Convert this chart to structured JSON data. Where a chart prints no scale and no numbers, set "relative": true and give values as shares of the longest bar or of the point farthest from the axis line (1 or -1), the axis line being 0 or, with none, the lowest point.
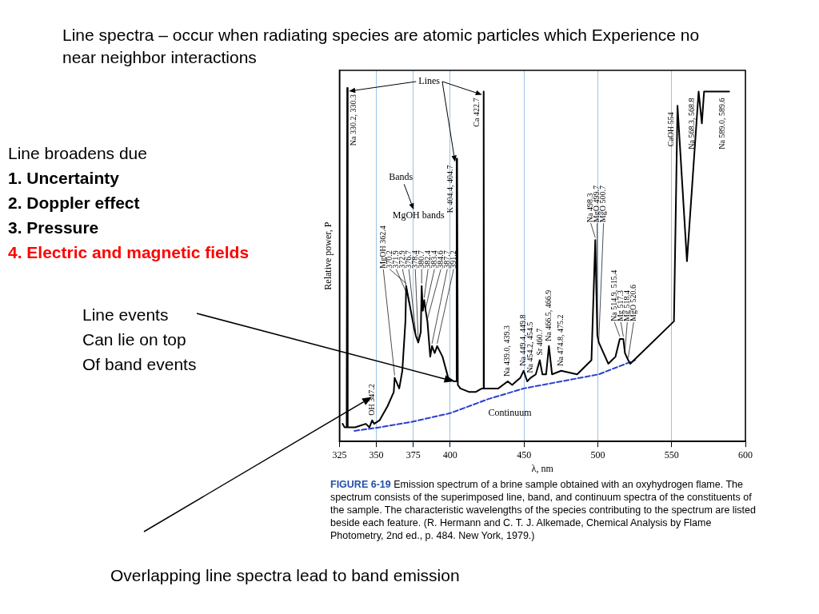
{
  "chart_data": {
    "type": "line",
    "title": "Line spectra – occur when radiating species are atomic particles which Experience no near neighbor interactions",
    "xlabel": "λ, nm",
    "ylabel": "Relative power, P",
    "relative": true,
    "xlim": [
      325,
      600
    ],
    "xticks": [
      325,
      350,
      375,
      400,
      450,
      500,
      550,
      600
    ],
    "grid": "x",
    "legend": false,
    "marker": "none",
    "series": [
      {
        "color": "#000000",
        "x": [
          327.1,
          328.5,
          329.9,
          330.2,
          330.3,
          330.6,
          335.6,
          342.9,
          345.3,
          347.2,
          348.5,
          352.2,
          357.6,
          361.8,
          362.4,
          365.5,
          367.6,
          369.7,
          370.2,
          371.9,
          372.9,
          375.6,
          376.7,
          378.4,
          380.1,
          380.7,
          381.5,
          382.4,
          383.4,
          384.6,
          386.5,
          387.7,
          389.5,
          391.2,
          394.8,
          398.7,
          402.6,
          404.2,
          404.4,
          404.7,
          405.2,
          406.9,
          413,
          417.2,
          421.5,
          422.6,
          422.7,
          422.9,
          432.6,
          439.0,
          442,
          444.7,
          447.5,
          449.8,
          452.2,
          454.5,
          458,
          460.7,
          462.5,
          465,
          466.9,
          469,
          475.2,
          486,
          495.7,
          498.3,
          499.7,
          500.7,
          507.1,
          512,
          514.9,
          517.3,
          518.4,
          520.6,
          522,
          551.6,
          554,
          560.4,
          568.3,
          570.5,
          572,
          589.0
        ],
        "values": [
          0.05,
          0.04,
          0.04,
          0.04,
          1.0,
          0.04,
          0.04,
          0.05,
          0.04,
          0.06,
          0.05,
          0.06,
          0.1,
          0.14,
          0.18,
          0.15,
          0.2,
          0.34,
          0.44,
          0.4,
          0.38,
          0.32,
          0.3,
          0.28,
          0.31,
          0.44,
          0.37,
          0.4,
          0.37,
          0.34,
          0.24,
          0.27,
          0.25,
          0.27,
          0.24,
          0.18,
          0.17,
          0.17,
          0.8,
          0.8,
          0.16,
          0.15,
          0.14,
          0.14,
          0.15,
          0.15,
          0.99,
          0.15,
          0.15,
          0.17,
          0.16,
          0.17,
          0.18,
          0.2,
          0.17,
          0.18,
          0.19,
          0.23,
          0.19,
          0.19,
          0.27,
          0.19,
          0.2,
          0.19,
          0.23,
          0.57,
          0.3,
          0.28,
          0.22,
          0.24,
          0.29,
          0.29,
          0.25,
          0.23,
          0.22,
          0.34,
          0.95,
          0.51,
          0.99,
          0.9,
          0.99,
          0.99
        ]
      },
      {
        "name": "Continuum",
        "color": "#2b3fcf",
        "line_style": "dashed",
        "x": [
          335.2,
          352.3,
          373.4,
          400,
          425.8,
          449.8,
          500.7,
          525.2
        ],
        "values": [
          0.03,
          0.04,
          0.055,
          0.08,
          0.12,
          0.15,
          0.19,
          0.23
        ]
      }
    ],
    "annotations": [
      "Line broadens due\n1.  Uncertainty\n2.  Doppler effect\n3.  Pressure\n4.  Electric and magnetic fields",
      "Line events\nCan lie on top\nOf band events",
      "Overlapping line spectra lead to band emission",
      "FIGURE 6-19 Emission spectrum of a brine sample obtained with an oxyhydrogen flame. The spectrum consists of the superimposed line, band, and continuum spectra of the constituents of the sample. The characteristic wavelengths of the species contributing to the spectrum are listed beside each feature. (R. Hermann and C. T. J. Alkemade, Chemical Analysis by Flame Photometry, 2nd ed., p. 484. New York, 1979.)",
      "Lines",
      "Bands",
      "MgOH bands",
      {
        "text": "Na 330.2, 330.3",
        "x": 330.3,
        "y": 1.0
      },
      {
        "text": "OH 347.2",
        "x": 347.2,
        "y": 0.06
      },
      {
        "text": "MgOH 362.4",
        "x": 362.4,
        "y": 0.18
      },
      {
        "text": "370.2",
        "x": 370.2,
        "y": 0.44
      },
      {
        "text": "371.9",
        "x": 371.9,
        "y": 0.4
      },
      {
        "text": "372.9",
        "x": 372.9,
        "y": 0.38
      },
      {
        "text": "376.7",
        "x": 376.7,
        "y": 0.3
      },
      {
        "text": "378.4",
        "x": 378.4,
        "y": 0.28
      },
      {
        "text": "380.7",
        "x": 380.7,
        "y": 0.44
      },
      {
        "text": "382.4",
        "x": 382.4,
        "y": 0.4
      },
      {
        "text": "383.4",
        "x": 383.4,
        "y": 0.37
      },
      {
        "text": "384.6",
        "x": 384.6,
        "y": 0.34
      },
      {
        "text": "387.7",
        "x": 387.7,
        "y": 0.27
      },
      {
        "text": "391.2",
        "x": 391.2,
        "y": 0.27
      },
      {
        "text": "K 404.4, 404.7",
        "x": 404.4,
        "y": 0.8
      },
      {
        "text": "Ca 422.7",
        "x": 422.7,
        "y": 0.99
      },
      {
        "text": "Na 439.0, 439.3",
        "x": 439.0,
        "y": 0.17
      },
      {
        "text": "Na 449.4, 449.8",
        "x": 449.8,
        "y": 0.2
      },
      {
        "text": "Na 454.2, 454.5",
        "x": 454.5,
        "y": 0.18
      },
      {
        "text": "Sr 460.7",
        "x": 460.7,
        "y": 0.23
      },
      {
        "text": "Na 466.5, 466.9",
        "x": 466.9,
        "y": 0.27
      },
      {
        "text": "Na 474.8, 475.2",
        "x": 475.2,
        "y": 0.2
      },
      {
        "text": "Na 498.3",
        "x": 498.3,
        "y": 0.57
      },
      {
        "text": "MgO 499.7",
        "x": 499.7,
        "y": 0.3
      },
      {
        "text": "MgO 500.7",
        "x": 500.7,
        "y": 0.28
      },
      {
        "text": "Na 514.9, 515.4",
        "x": 514.9,
        "y": 0.29
      },
      {
        "text": "Mg 517.3",
        "x": 517.3,
        "y": 0.29
      },
      {
        "text": "Mg 518.4",
        "x": 518.4,
        "y": 0.25
      },
      {
        "text": "MgO 520.6",
        "x": 520.6,
        "y": 0.23
      },
      {
        "text": "CaOH 554",
        "x": 554,
        "y": 0.95
      },
      {
        "text": "Na 568.3, 568.8",
        "x": 568.3,
        "y": 0.99
      },
      {
        "text": "Na 589.0, 589.6",
        "x": 589.0,
        "y": 0.99
      }
    ]
  }
}
